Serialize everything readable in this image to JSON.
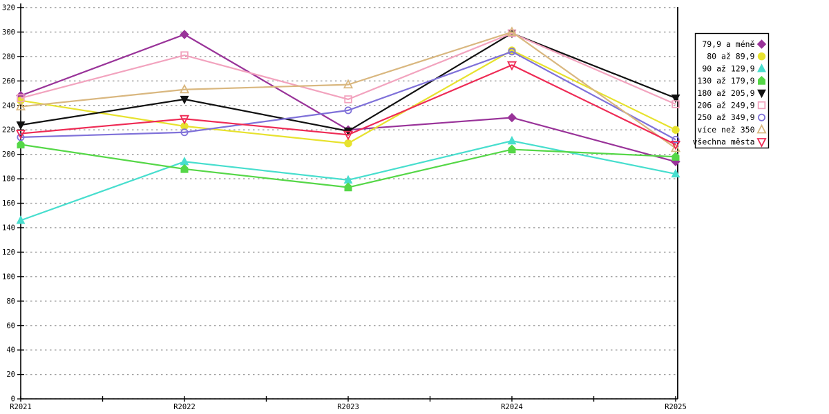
{
  "chart_data": {
    "type": "line",
    "title": "",
    "xlabel": "",
    "ylabel": "",
    "categories": [
      "R2021",
      "R2022",
      "R2023",
      "R2024",
      "R2025"
    ],
    "ylim": [
      0,
      320
    ],
    "ytick_step": 20,
    "grid": "dashed horizontal gridlines every 20",
    "legend_position": "right",
    "axes": {
      "y_tick_labels": [
        "0",
        "20",
        "40",
        "60",
        "80",
        "100",
        "120",
        "140",
        "160",
        "180",
        "200",
        "220",
        "240",
        "260",
        "280",
        "300",
        "320"
      ]
    },
    "series": [
      {
        "name": "79,9 a méně",
        "marker": "diamond-filled",
        "color": "#993399",
        "values": [
          248,
          298,
          220,
          230,
          194
        ]
      },
      {
        "name": "80 až 89,9",
        "marker": "circle-filled",
        "color": "#E7E22E",
        "values": [
          244,
          223,
          209,
          285,
          220
        ]
      },
      {
        "name": "90 až 129,9",
        "marker": "triangle-up-filled",
        "color": "#47DECE",
        "values": [
          146,
          194,
          179,
          211,
          184
        ]
      },
      {
        "name": "130 až 179,9",
        "marker": "pentagon-filled",
        "color": "#55D747",
        "values": [
          208,
          188,
          173,
          204,
          198
        ]
      },
      {
        "name": "180 až 205,9",
        "marker": "triangle-down-filled",
        "color": "#111111",
        "values": [
          224,
          245,
          219,
          299,
          246
        ]
      },
      {
        "name": "206 až 249,9",
        "marker": "square-open",
        "color": "#F2A3BE",
        "values": [
          246,
          281,
          245,
          299,
          241
        ]
      },
      {
        "name": "250 až 349,9",
        "marker": "circle-open",
        "color": "#7F71D9",
        "values": [
          214,
          218,
          236,
          284,
          212
        ]
      },
      {
        "name": "více než 350",
        "marker": "triangle-up-open",
        "color": "#D9B77F",
        "values": [
          239,
          253,
          257,
          300,
          205
        ]
      },
      {
        "name": "všechna města",
        "marker": "triangle-down-open",
        "color": "#EE2B55",
        "values": [
          217,
          229,
          216,
          273,
          208
        ]
      }
    ],
    "colors": {
      "axis": "#000000",
      "gridline": "#999999",
      "background": "#ffffff",
      "legend_border": "#000000"
    }
  }
}
